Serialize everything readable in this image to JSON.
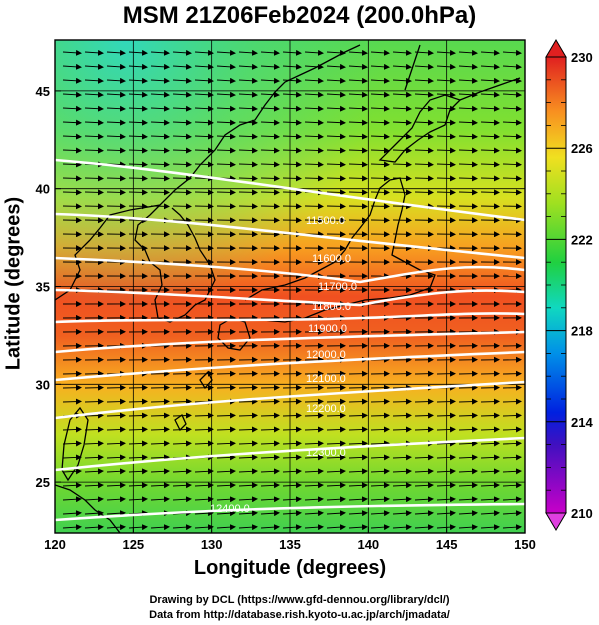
{
  "title": "MSM 21Z06Feb2024 (200.0hPa)",
  "x_axis": {
    "label": "Longitude (degrees)",
    "min": 120,
    "max": 150,
    "ticks": [
      "120",
      "125",
      "130",
      "135",
      "140",
      "145",
      "150"
    ]
  },
  "y_axis": {
    "label": "Latitude  (degrees)",
    "min": 22.4,
    "max": 47.6,
    "ticks": [
      "25",
      "30",
      "35",
      "40",
      "45"
    ]
  },
  "colorbar": {
    "min": 210,
    "max": 230,
    "labels": [
      "230",
      "226",
      "222",
      "218",
      "214",
      "210"
    ]
  },
  "contours": [
    {
      "label": "11500.0"
    },
    {
      "label": "11600.0"
    },
    {
      "label": "11700.0"
    },
    {
      "label": "11800.0"
    },
    {
      "label": "11900.0"
    },
    {
      "label": "12000.0"
    },
    {
      "label": "12100.0"
    },
    {
      "label": "12200.0"
    },
    {
      "label": "12300.0"
    },
    {
      "label": "12400.0"
    }
  ],
  "credits": {
    "line1": "Drawing by DCL (https://www.gfd-dennou.org/library/dcl/)",
    "line2": "Data from http://database.rish.kyoto-u.ac.jp/arch/jmadata/"
  }
}
